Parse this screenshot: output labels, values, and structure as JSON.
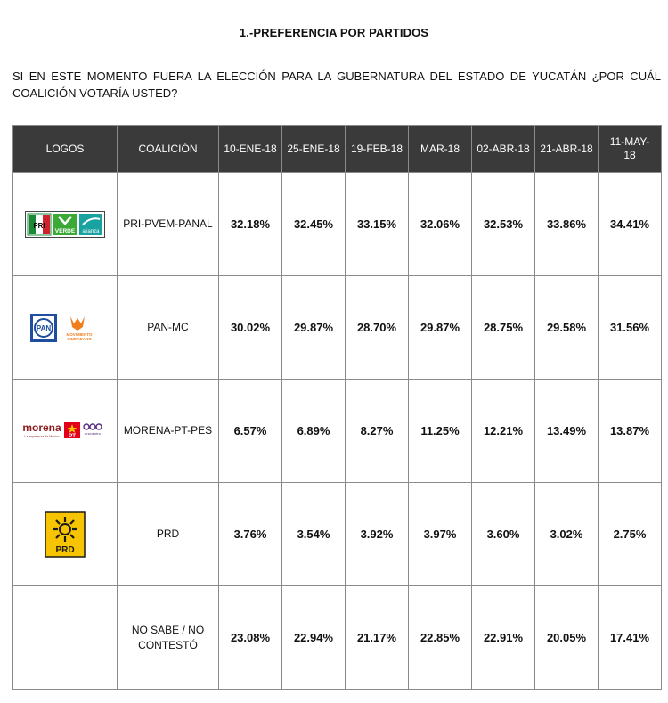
{
  "title": "1.-PREFERENCIA POR PARTIDOS",
  "question": "SI EN ESTE MOMENTO FUERA LA ELECCIÓN PARA LA GUBERNATURA DEL ESTADO DE YUCATÁN ¿POR CUÁL COALICIÓN VOTARÍA USTED?",
  "table": {
    "headers": [
      "LOGOS",
      "COALICIÓN",
      "10-ENE-18",
      "25-ENE-18",
      "19-FEB-18",
      "MAR-18",
      "02-ABR-18",
      "21-ABR-18",
      "11-MAY-18"
    ],
    "rows": [
      {
        "logo": "pri-pvem-panal-logos",
        "logo_texts": [
          "PRI",
          "VERDE",
          "alianza"
        ],
        "coalition": "PRI-PVEM-PANAL",
        "values": [
          "32.18%",
          "32.45%",
          "33.15%",
          "32.06%",
          "32.53%",
          "33.86%",
          "34.41%"
        ]
      },
      {
        "logo": "pan-mc-logos",
        "logo_texts": [
          "PAN",
          "MOVIMIENTO",
          "CIUDADANO"
        ],
        "coalition": "PAN-MC",
        "values": [
          "30.02%",
          "29.87%",
          "28.70%",
          "29.87%",
          "28.75%",
          "29.58%",
          "31.56%"
        ]
      },
      {
        "logo": "morena-pt-pes-logos",
        "logo_texts": [
          "morena",
          "La esperanza de México",
          "PT",
          "encuentro"
        ],
        "coalition": "MORENA-PT-PES",
        "values": [
          "6.57%",
          "6.89%",
          "8.27%",
          "11.25%",
          "12.21%",
          "13.49%",
          "13.87%"
        ]
      },
      {
        "logo": "prd-logo",
        "logo_texts": [
          "PRD"
        ],
        "coalition": "PRD",
        "values": [
          "3.76%",
          "3.54%",
          "3.92%",
          "3.97%",
          "3.60%",
          "3.02%",
          "2.75%"
        ]
      },
      {
        "logo": "",
        "logo_texts": [],
        "coalition": "NO SABE / NO CONTESTÓ",
        "values": [
          "23.08%",
          "22.94%",
          "21.17%",
          "22.85%",
          "22.91%",
          "20.05%",
          "17.41%"
        ]
      }
    ]
  },
  "colors": {
    "header_bg": "#3a3a3a",
    "header_text": "#ffffff",
    "border": "#8a8a8a",
    "pri_red": "#d3202f",
    "pri_green": "#1a8a3a",
    "pvem_green": "#3aa935",
    "panal_teal": "#19a3a0",
    "pan_blue": "#1f4e9e",
    "mc_orange": "#f07d1e",
    "morena_red": "#8b1c1c",
    "pt_red": "#e2001a",
    "prd_yellow": "#f6c400"
  }
}
